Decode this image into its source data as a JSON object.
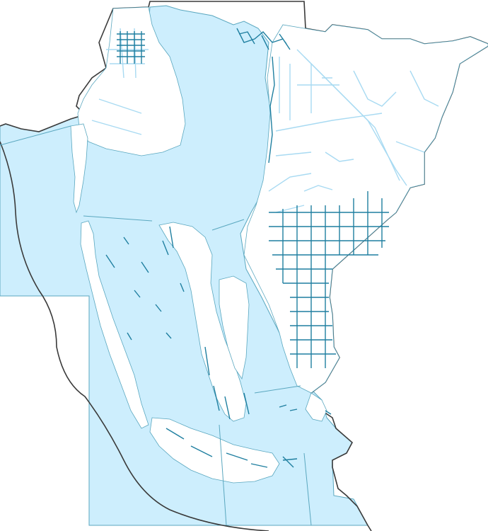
{
  "map": {
    "colors": {
      "background": "#ffffff",
      "water_fill": "#cdeefd",
      "water_stroke": "#5aa7bf",
      "land_fill": "#ffffff",
      "county_outline": "#3a3a3a",
      "canal_dark": "#1f7fa0",
      "canal_light": "#a8daf2"
    },
    "layers": [
      "water-body",
      "county-boundary",
      "land-masses",
      "canals",
      "roads-and-streams"
    ]
  }
}
